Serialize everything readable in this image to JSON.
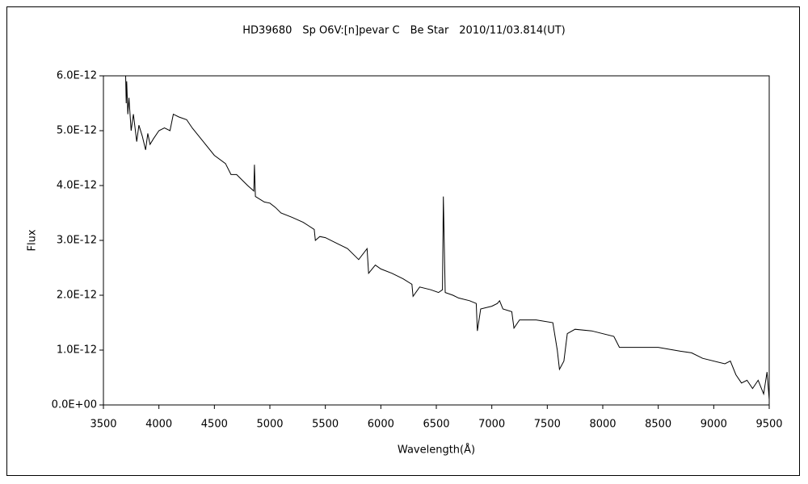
{
  "chart_data": {
    "type": "line",
    "title": "HD39680　Sp O6V:[n]pevar C　Be Star　2010/11/03.814(UT)",
    "x_label": "Wavelength(Å)",
    "y_label": "Flux",
    "color": "#000000",
    "grid": false,
    "xlim": [
      3500,
      9500
    ],
    "xticks": [
      3500,
      4000,
      4500,
      5000,
      5500,
      6000,
      6500,
      7000,
      7500,
      8000,
      8500,
      9000,
      9500
    ],
    "ylim": [
      0,
      6e-12
    ],
    "yticks": [
      {
        "value": 0,
        "label": "0.0E+00"
      },
      {
        "value": 1e-12,
        "label": "1.0E-12"
      },
      {
        "value": 2e-12,
        "label": "2.0E-12"
      },
      {
        "value": 3e-12,
        "label": "3.0E-12"
      },
      {
        "value": 4e-12,
        "label": "4.0E-12"
      },
      {
        "value": 5e-12,
        "label": "5.0E-12"
      },
      {
        "value": 6e-12,
        "label": "6.0E-12"
      }
    ],
    "x": [
      3700,
      3705,
      3710,
      3720,
      3730,
      3750,
      3770,
      3800,
      3820,
      3850,
      3880,
      3900,
      3920,
      3950,
      4000,
      4050,
      4100,
      4130,
      4180,
      4250,
      4300,
      4400,
      4500,
      4600,
      4650,
      4700,
      4800,
      4855,
      4861,
      4870,
      4950,
      5000,
      5050,
      5100,
      5200,
      5300,
      5400,
      5410,
      5450,
      5500,
      5600,
      5700,
      5800,
      5876,
      5890,
      5950,
      6000,
      6100,
      6200,
      6280,
      6290,
      6350,
      6450,
      6520,
      6555,
      6563,
      6580,
      6650,
      6700,
      6800,
      6860,
      6870,
      6900,
      7000,
      7050,
      7070,
      7100,
      7180,
      7200,
      7250,
      7400,
      7550,
      7590,
      7610,
      7650,
      7680,
      7750,
      7900,
      8100,
      8150,
      8300,
      8500,
      8700,
      8800,
      8900,
      9100,
      9150,
      9200,
      9250,
      9300,
      9350,
      9400,
      9450,
      9480,
      9500
    ],
    "values": [
      6e-12,
      5.5e-12,
      5.9e-12,
      5.3e-12,
      5.6e-12,
      5e-12,
      5.3e-12,
      4.8e-12,
      5.1e-12,
      4.9e-12,
      4.65e-12,
      4.95e-12,
      4.75e-12,
      4.85e-12,
      5e-12,
      5.05e-12,
      5e-12,
      5.3e-12,
      5.25e-12,
      5.2e-12,
      5.05e-12,
      4.8e-12,
      4.55e-12,
      4.4e-12,
      4.2e-12,
      4.2e-12,
      4e-12,
      3.9e-12,
      4.38e-12,
      3.8e-12,
      3.7e-12,
      3.68e-12,
      3.6e-12,
      3.5e-12,
      3.42e-12,
      3.33e-12,
      3.2e-12,
      3e-12,
      3.07e-12,
      3.05e-12,
      2.95e-12,
      2.85e-12,
      2.65e-12,
      2.85e-12,
      2.4e-12,
      2.55e-12,
      2.48e-12,
      2.4e-12,
      2.3e-12,
      2.2e-12,
      1.98e-12,
      2.15e-12,
      2.1e-12,
      2.05e-12,
      2.1e-12,
      3.8e-12,
      2.05e-12,
      2e-12,
      1.95e-12,
      1.9e-12,
      1.85e-12,
      1.35e-12,
      1.75e-12,
      1.8e-12,
      1.85e-12,
      1.9e-12,
      1.75e-12,
      1.7e-12,
      1.4e-12,
      1.55e-12,
      1.55e-12,
      1.5e-12,
      1e-12,
      6.5e-13,
      8e-13,
      1.3e-12,
      1.38e-12,
      1.35e-12,
      1.25e-12,
      1.05e-12,
      1.05e-12,
      1.05e-12,
      9.8e-13,
      9.5e-13,
      8.5e-13,
      7.5e-13,
      8e-13,
      5.5e-13,
      4e-13,
      4.5e-13,
      3e-13,
      4.5e-13,
      2e-13,
      6e-13,
      1e-13
    ]
  }
}
